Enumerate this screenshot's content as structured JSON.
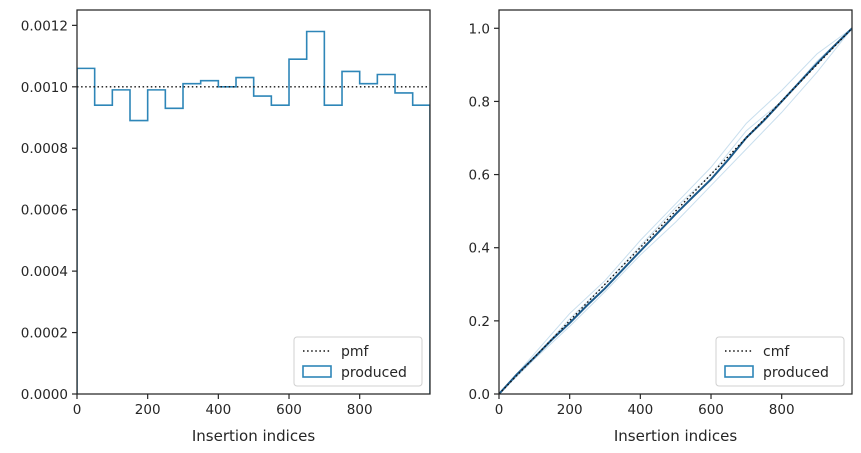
{
  "colors": {
    "hist": "#2e86b8",
    "ref": "#111111",
    "light": "#c9dfee",
    "axis": "#262626",
    "cdf_main": "#1c5a8a"
  },
  "chart_data": [
    {
      "type": "histogram",
      "xlabel": "Insertion indices",
      "ylabel": "",
      "xlim": [
        0,
        999
      ],
      "ylim": [
        0,
        0.00125
      ],
      "xticks": [
        0,
        200,
        400,
        600,
        800
      ],
      "xtick_labels": [
        "0",
        "200",
        "400",
        "600",
        "800"
      ],
      "yticks": [
        0,
        0.0002,
        0.0004,
        0.0006,
        0.0008,
        0.001,
        0.0012
      ],
      "ytick_labels": [
        "0.0000",
        "0.0002",
        "0.0004",
        "0.0006",
        "0.0008",
        "0.0010",
        "0.0012"
      ],
      "grid": false,
      "legend": {
        "position": "bottom-right",
        "entries": [
          "pmf",
          "produced"
        ]
      },
      "reference": {
        "name": "pmf",
        "style": "dotted",
        "y": 0.001
      },
      "series": [
        {
          "name": "produced",
          "bin_edges": [
            0,
            50,
            100,
            150,
            200,
            250,
            300,
            350,
            400,
            450,
            500,
            550,
            600,
            650,
            700,
            750,
            800,
            850,
            900,
            950,
            999
          ],
          "values": [
            0.00106,
            0.00094,
            0.00099,
            0.00089,
            0.00099,
            0.00093,
            0.00101,
            0.00102,
            0.001,
            0.00103,
            0.00097,
            0.00094,
            0.00109,
            0.00118,
            0.00094,
            0.00105,
            0.00101,
            0.00104,
            0.00098,
            0.00094
          ]
        }
      ]
    },
    {
      "type": "line",
      "xlabel": "Insertion indices",
      "ylabel": "",
      "xlim": [
        0,
        999
      ],
      "ylim": [
        0,
        1.05
      ],
      "xticks": [
        0,
        200,
        400,
        600,
        800
      ],
      "xtick_labels": [
        "0",
        "200",
        "400",
        "600",
        "800"
      ],
      "yticks": [
        0,
        0.2,
        0.4,
        0.6,
        0.8,
        1.0
      ],
      "ytick_labels": [
        "0.0",
        "0.2",
        "0.4",
        "0.6",
        "0.8",
        "1.0"
      ],
      "grid": false,
      "legend": {
        "position": "bottom-right",
        "entries": [
          "cmf",
          "produced"
        ]
      },
      "reference": {
        "name": "cmf",
        "style": "dotted",
        "x": [
          0,
          999
        ],
        "y": [
          0,
          1.0
        ]
      },
      "series": [
        {
          "name": "produced",
          "x": [
            0,
            50,
            100,
            150,
            200,
            250,
            300,
            350,
            400,
            450,
            500,
            550,
            600,
            650,
            700,
            750,
            800,
            850,
            900,
            950,
            999
          ],
          "y": [
            0,
            0.053,
            0.1,
            0.149,
            0.194,
            0.243,
            0.289,
            0.34,
            0.391,
            0.441,
            0.492,
            0.54,
            0.587,
            0.642,
            0.701,
            0.748,
            0.8,
            0.852,
            0.904,
            0.953,
            1.0
          ]
        }
      ],
      "faint_series": [
        {
          "x": [
            0,
            100,
            200,
            300,
            400,
            500,
            600,
            700,
            800,
            900,
            999
          ],
          "y": [
            0,
            0.11,
            0.22,
            0.31,
            0.42,
            0.52,
            0.62,
            0.74,
            0.83,
            0.93,
            1.0
          ]
        },
        {
          "x": [
            0,
            100,
            200,
            300,
            400,
            500,
            600,
            700,
            800,
            900,
            999
          ],
          "y": [
            0,
            0.095,
            0.185,
            0.28,
            0.38,
            0.47,
            0.57,
            0.67,
            0.77,
            0.88,
            1.0
          ]
        },
        {
          "x": [
            0,
            100,
            200,
            300,
            400,
            500,
            600,
            700,
            800,
            900,
            999
          ],
          "y": [
            0,
            0.1,
            0.205,
            0.3,
            0.405,
            0.51,
            0.6,
            0.72,
            0.8,
            0.91,
            1.0
          ]
        }
      ]
    }
  ]
}
